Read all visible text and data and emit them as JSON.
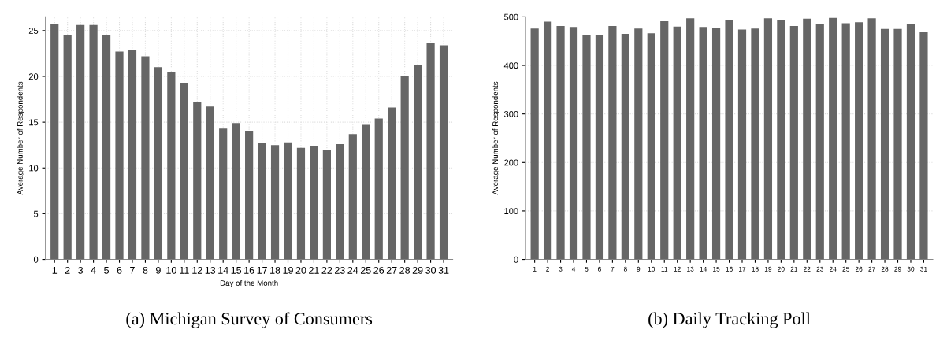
{
  "chart_data": [
    {
      "type": "bar",
      "title": "(a) Michigan Survey of Consumers",
      "xlabel": "Day of the Month",
      "ylabel": "Average Number of Respondents",
      "categories": [
        "1",
        "2",
        "3",
        "4",
        "5",
        "6",
        "7",
        "8",
        "9",
        "10",
        "11",
        "12",
        "13",
        "14",
        "15",
        "16",
        "17",
        "18",
        "19",
        "20",
        "21",
        "22",
        "23",
        "24",
        "25",
        "26",
        "27",
        "28",
        "29",
        "30",
        "31"
      ],
      "series": [
        {
          "color": "#666666",
          "values": [
            25.7,
            24.5,
            25.6,
            25.6,
            24.5,
            22.7,
            22.9,
            22.2,
            21.0,
            20.5,
            19.3,
            17.2,
            16.7,
            14.3,
            14.9,
            14.0,
            12.7,
            12.5,
            12.8,
            12.2,
            12.4,
            12.0,
            12.6,
            13.7,
            14.7,
            15.4,
            16.6,
            20.0,
            21.2,
            23.7,
            23.4
          ]
        }
      ],
      "ylim": [
        0,
        26.5
      ],
      "yticks": [
        0,
        5,
        10,
        15,
        20,
        25
      ],
      "grid": true
    },
    {
      "type": "bar",
      "title": "(b) Daily Tracking Poll",
      "ylabel": "Average Number of Respondents",
      "categories": [
        "1",
        "2",
        "3",
        "4",
        "5",
        "6",
        "7",
        "8",
        "9",
        "10",
        "11",
        "12",
        "13",
        "14",
        "15",
        "16",
        "17",
        "18",
        "19",
        "20",
        "21",
        "22",
        "23",
        "24",
        "25",
        "26",
        "27",
        "28",
        "29",
        "30",
        "31"
      ],
      "series": [
        {
          "color": "#666666",
          "values": [
            476,
            490,
            481,
            479,
            463,
            463,
            481,
            465,
            476,
            466,
            491,
            480,
            497,
            479,
            477,
            494,
            474,
            476,
            497,
            494,
            481,
            496,
            486,
            498,
            487,
            489,
            497,
            475,
            475,
            485,
            468
          ]
        }
      ],
      "ylim": [
        0,
        500
      ],
      "yticks": [
        0,
        100,
        200,
        300,
        400,
        500
      ],
      "grid": "y"
    }
  ]
}
